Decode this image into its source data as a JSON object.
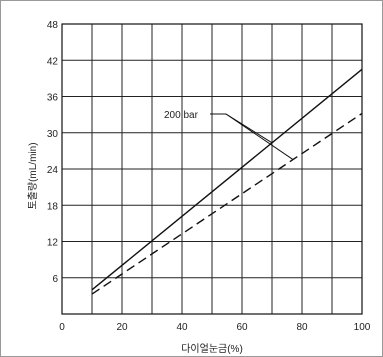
{
  "chart_data": {
    "type": "line",
    "xlabel": "다이얼눈금(%)",
    "ylabel": "토출량(mL/min)",
    "xlim": [
      0,
      100
    ],
    "ylim": [
      0,
      48
    ],
    "x_ticks": [
      "0",
      "20",
      "40",
      "60",
      "80",
      "100"
    ],
    "y_ticks": [
      "6",
      "12",
      "18",
      "24",
      "30",
      "36",
      "42",
      "48"
    ],
    "grid": true,
    "series": [
      {
        "style": "solid",
        "x": [
          10,
          100
        ],
        "y": [
          4.0,
          40.5
        ]
      },
      {
        "style": "dashed",
        "x": [
          10,
          100
        ],
        "y": [
          3.3,
          33.2
        ]
      }
    ],
    "annotation": {
      "text": "200 bar"
    }
  }
}
